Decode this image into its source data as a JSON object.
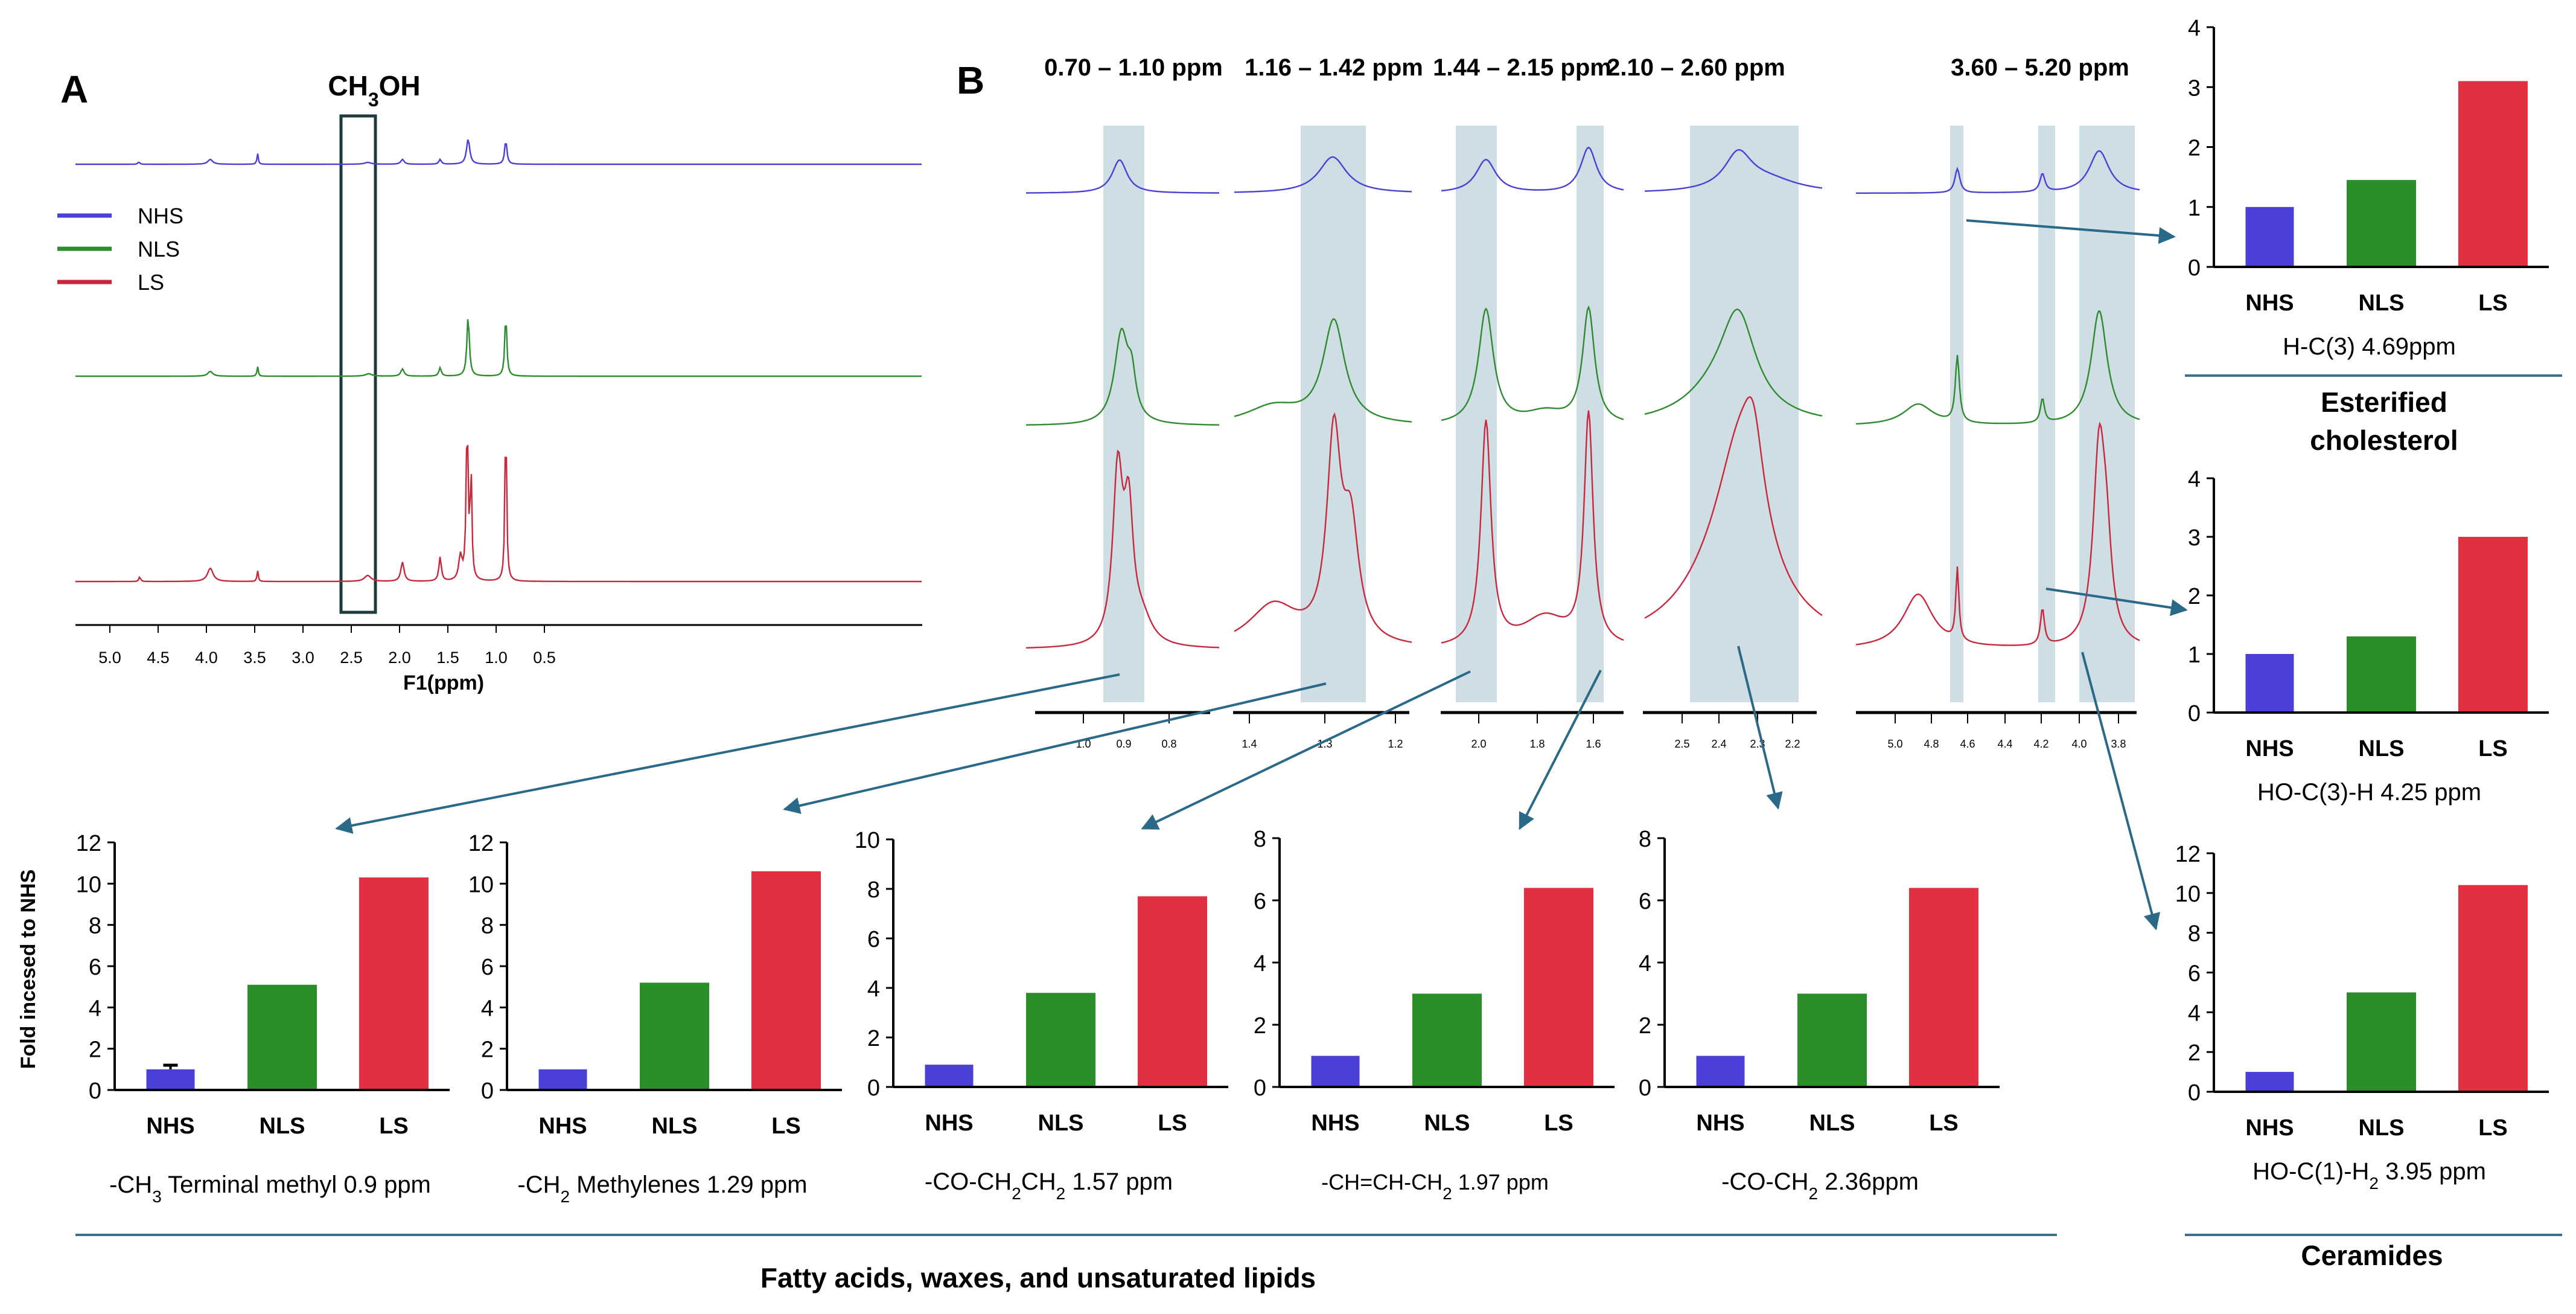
{
  "panel_a": {
    "letter": "A",
    "box_label": "CH₃OH",
    "xlabel": "F1(ppm)",
    "ticks": [
      "5.0",
      "4.5",
      "4.0",
      "3.5",
      "3.0",
      "2.5",
      "2.0",
      "1.5",
      "1.0",
      "0.5"
    ],
    "legend": [
      {
        "name": "NHS",
        "color": "#4a3fd6"
      },
      {
        "name": "NLS",
        "color": "#2e8b2e"
      },
      {
        "name": "LS",
        "color": "#c8283c"
      }
    ]
  },
  "panel_b": {
    "letter": "B",
    "ranges": [
      "0.70 – 1.10 ppm",
      "1.16 – 1.42 ppm",
      "1.44 – 2.15 ppm",
      "2.10 – 2.60 ppm",
      "3.60 – 5.20 ppm"
    ],
    "axis_ticks": [
      [
        "1.0",
        "0.9",
        "0.8"
      ],
      [
        "1.4",
        "1.3",
        "1.2"
      ],
      [
        "2.0",
        "1.8",
        "1.6"
      ],
      [
        "2.5",
        "2.4",
        "2.3",
        "2.2"
      ],
      [
        "5.0",
        "4.8",
        "4.6",
        "4.4",
        "4.2",
        "4.0",
        "3.8"
      ]
    ]
  },
  "groups": {
    "fatty": "Fatty acids, waxes, and unsaturated lipids",
    "esterified": [
      "Esterified",
      "cholesterol"
    ],
    "ceramides": "Ceramides"
  },
  "y_axis_title": "Fold incesed to NHS",
  "chart_data": [
    {
      "type": "bar",
      "title": "-CH₃ Terminal methyl 0.9 ppm",
      "categories": [
        "NHS",
        "NLS",
        "LS"
      ],
      "values": [
        1.0,
        5.1,
        10.3
      ],
      "error": [
        0.2,
        0,
        0
      ],
      "ylim": [
        0,
        12
      ],
      "yticks": [
        "0",
        "2",
        "4",
        "6",
        "8",
        "10",
        "12"
      ]
    },
    {
      "type": "bar",
      "title": "-CH₂ Methylenes  1.29 ppm",
      "categories": [
        "NHS",
        "NLS",
        "LS"
      ],
      "values": [
        1.0,
        5.2,
        10.6
      ],
      "ylim": [
        0,
        12
      ],
      "yticks": [
        "0",
        "2",
        "4",
        "6",
        "8",
        "10",
        "12"
      ]
    },
    {
      "type": "bar",
      "title": "-CO-CH₂CH₂  1.57 ppm",
      "categories": [
        "NHS",
        "NLS",
        "LS"
      ],
      "values": [
        0.9,
        3.8,
        7.7
      ],
      "ylim": [
        0,
        10
      ],
      "yticks": [
        "0",
        "2",
        "4",
        "6",
        "8",
        "10"
      ]
    },
    {
      "type": "bar",
      "title": "-CH=CH-CH₂ 1.97 ppm",
      "categories": [
        "NHS",
        "NLS",
        "LS"
      ],
      "values": [
        1.0,
        3.0,
        6.4
      ],
      "ylim": [
        0,
        8
      ],
      "yticks": [
        "0",
        "2",
        "4",
        "6",
        "8"
      ]
    },
    {
      "type": "bar",
      "title": "-CO-CH₂  2.36ppm",
      "categories": [
        "NHS",
        "NLS",
        "LS"
      ],
      "values": [
        1.0,
        3.0,
        6.4
      ],
      "ylim": [
        0,
        8
      ],
      "yticks": [
        "0",
        "2",
        "4",
        "6",
        "8"
      ]
    },
    {
      "type": "bar",
      "title": "H-C(3) 4.69ppm",
      "categories": [
        "NHS",
        "NLS",
        "LS"
      ],
      "values": [
        1.0,
        1.45,
        3.1
      ],
      "ylim": [
        0,
        4
      ],
      "yticks": [
        "0",
        "1",
        "2",
        "3",
        "4"
      ]
    },
    {
      "type": "bar",
      "title": "HO-C(3)-H  4.25 ppm",
      "categories": [
        "NHS",
        "NLS",
        "LS"
      ],
      "values": [
        1.0,
        1.3,
        3.0
      ],
      "ylim": [
        0,
        4
      ],
      "yticks": [
        "0",
        "1",
        "2",
        "3",
        "4"
      ]
    },
    {
      "type": "bar",
      "title": "HO-C(1)-H₂  3.95 ppm",
      "categories": [
        "NHS",
        "NLS",
        "LS"
      ],
      "values": [
        1.0,
        5.0,
        10.4
      ],
      "ylim": [
        0,
        12
      ],
      "yticks": [
        "0",
        "2",
        "4",
        "6",
        "8",
        "10",
        "12"
      ]
    }
  ],
  "colors": {
    "bars": [
      "#4a3fd6",
      "#2a8f2a",
      "#e23040"
    ],
    "spectra": [
      "#4a3fd6",
      "#2e8b2e",
      "#c8283c"
    ],
    "arrow": "#2a6a88",
    "shade": "#cfdde4"
  }
}
